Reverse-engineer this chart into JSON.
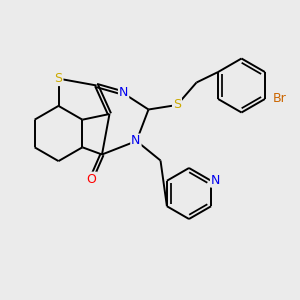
{
  "bg_color": "#ebebeb",
  "atom_colors": {
    "S": "#ccaa00",
    "N": "#0000ee",
    "O": "#ff0000",
    "Br": "#cc6600",
    "C": "#000000"
  },
  "bond_color": "#000000",
  "bond_width": 1.4,
  "dbo": 0.055,
  "font_size": 8.5
}
